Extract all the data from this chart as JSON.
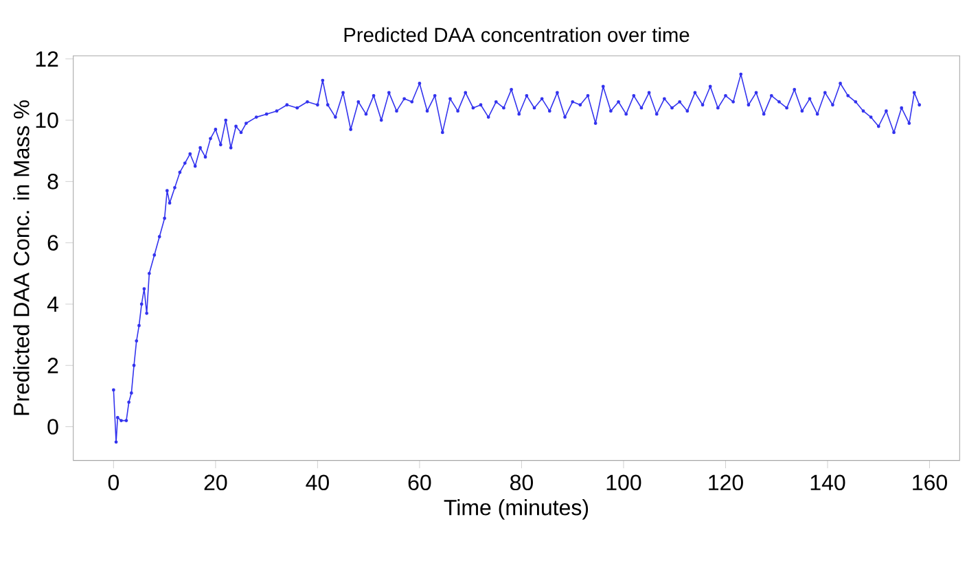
{
  "chart_data": {
    "type": "line",
    "title": "Predicted DAA concentration over time",
    "xlabel": "Time (minutes)",
    "ylabel": "Predicted DAA Conc. in Mass %",
    "xlim": [
      -7.9,
      165.9
    ],
    "ylim": [
      -1.1,
      12.1
    ],
    "xticks": [
      0,
      20,
      40,
      60,
      80,
      100,
      120,
      140,
      160
    ],
    "yticks": [
      0,
      2,
      4,
      6,
      8,
      10,
      12
    ],
    "marker": "circle",
    "line_style": "solid",
    "series": [
      {
        "color": "#3333ee",
        "x": [
          0,
          0.5,
          0.8,
          1.5,
          2.5,
          3,
          3.5,
          4,
          4.5,
          5,
          5.5,
          6,
          6.5,
          7,
          8,
          9,
          10,
          10.5,
          11,
          12,
          13,
          14,
          15,
          16,
          17,
          18,
          19,
          20,
          21,
          22,
          23,
          24,
          25,
          26,
          28,
          30,
          32,
          34,
          36,
          38,
          40,
          41,
          42,
          43.5,
          45,
          46.5,
          48,
          49.5,
          51,
          52.5,
          54,
          55.5,
          57,
          58.5,
          60,
          61.5,
          63,
          64.5,
          66,
          67.5,
          69,
          70.5,
          72,
          73.5,
          75,
          76.5,
          78,
          79.5,
          81,
          82.5,
          84,
          85.5,
          87,
          88.5,
          90,
          91.5,
          93,
          94.5,
          96,
          97.5,
          99,
          100.5,
          102,
          103.5,
          105,
          106.5,
          108,
          109.5,
          111,
          112.5,
          114,
          115.5,
          117,
          118.5,
          120,
          121.5,
          123,
          124.5,
          126,
          127.5,
          129,
          130.5,
          132,
          133.5,
          135,
          136.5,
          138,
          139.5,
          141,
          142.5,
          144,
          145.5,
          147,
          148.5,
          150,
          151.5,
          153,
          154.5,
          156,
          157,
          158
        ],
        "values": [
          1.2,
          -0.5,
          0.3,
          0.2,
          0.2,
          0.8,
          1.1,
          2.0,
          2.8,
          3.3,
          4.0,
          4.5,
          3.7,
          5.0,
          5.6,
          6.2,
          6.8,
          7.7,
          7.3,
          7.8,
          8.3,
          8.6,
          8.9,
          8.5,
          9.1,
          8.8,
          9.4,
          9.7,
          9.2,
          10.0,
          9.1,
          9.8,
          9.6,
          9.9,
          10.1,
          10.2,
          10.3,
          10.5,
          10.4,
          10.6,
          10.5,
          11.3,
          10.5,
          10.1,
          10.9,
          9.7,
          10.6,
          10.2,
          10.8,
          10.0,
          10.9,
          10.3,
          10.7,
          10.6,
          11.2,
          10.3,
          10.8,
          9.6,
          10.7,
          10.3,
          10.9,
          10.4,
          10.5,
          10.1,
          10.6,
          10.4,
          11.0,
          10.2,
          10.8,
          10.4,
          10.7,
          10.3,
          10.9,
          10.1,
          10.6,
          10.5,
          10.8,
          9.9,
          11.1,
          10.3,
          10.6,
          10.2,
          10.8,
          10.4,
          10.9,
          10.2,
          10.7,
          10.4,
          10.6,
          10.3,
          10.9,
          10.5,
          11.1,
          10.4,
          10.8,
          10.6,
          11.5,
          10.5,
          10.9,
          10.2,
          10.8,
          10.6,
          10.4,
          11.0,
          10.3,
          10.7,
          10.2,
          10.9,
          10.5,
          11.2,
          10.8,
          10.6,
          10.3,
          10.1,
          9.8,
          10.3,
          9.6,
          10.4,
          9.9,
          10.9,
          10.5
        ]
      }
    ]
  }
}
